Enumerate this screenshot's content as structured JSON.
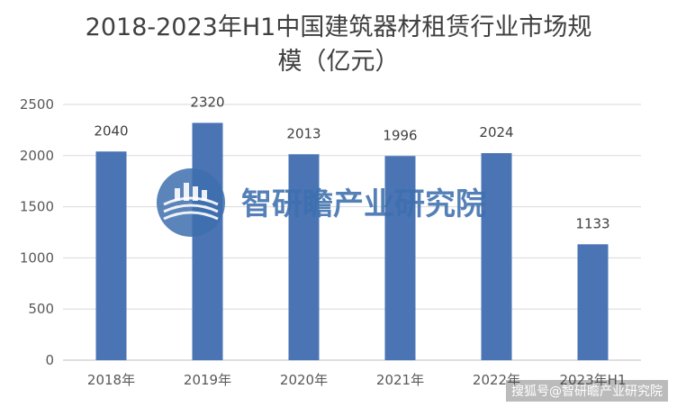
{
  "chart_data": {
    "type": "bar",
    "title_lines": [
      "2018-2023年H1中国建筑器材租赁行业市场规",
      "模（亿元）"
    ],
    "categories": [
      "2018年",
      "2019年",
      "2020年",
      "2021年",
      "2022年",
      "2023年H1"
    ],
    "values": [
      2040,
      2320,
      2013,
      1996,
      2024,
      1133
    ],
    "ylim": [
      0,
      2500
    ],
    "yticks": [
      "0",
      "500",
      "1000",
      "1500",
      "2000",
      "2500"
    ],
    "grid": true,
    "bar_color": "#4a74b4",
    "grid_color": "#d9d9d9"
  },
  "watermark": {
    "text": "智研瞻产业研究院",
    "color": "#3d6fae"
  },
  "source_tag": "搜狐号@智研瞻产业研究院"
}
